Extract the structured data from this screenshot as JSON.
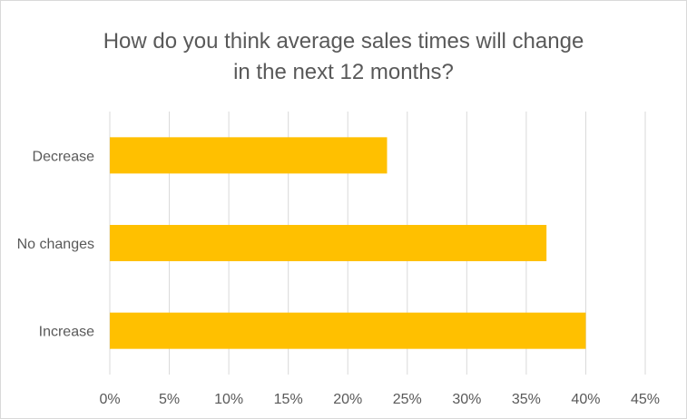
{
  "chart_data": {
    "type": "bar",
    "orientation": "horizontal",
    "title_lines": [
      "How do you think average sales times will change",
      "in the next 12 months?"
    ],
    "categories": [
      "Decrease",
      "No changes",
      "Increase"
    ],
    "values": [
      23.3,
      36.7,
      40.0
    ],
    "value_unit": "%",
    "xlim": [
      0,
      45
    ],
    "x_ticks": [
      0,
      5,
      10,
      15,
      20,
      25,
      30,
      35,
      40,
      45
    ],
    "x_tick_labels": [
      "0%",
      "5%",
      "10%",
      "15%",
      "20%",
      "25%",
      "30%",
      "35%",
      "40%",
      "45%"
    ],
    "grid": "vertical",
    "legend": "none",
    "bar_color": "#FFC000",
    "grid_color": "#d9d9d9"
  }
}
